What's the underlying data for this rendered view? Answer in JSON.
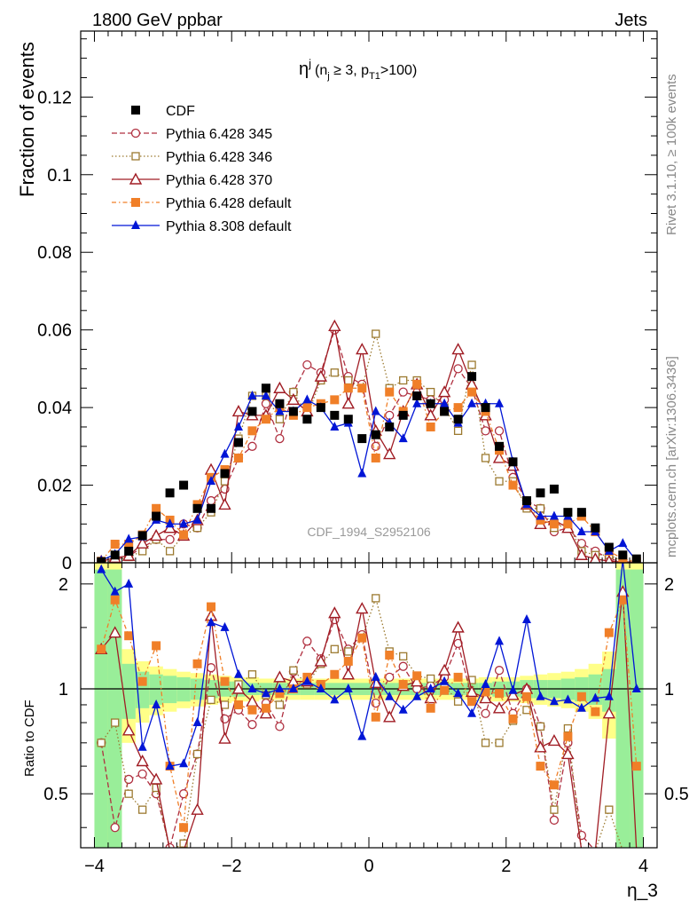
{
  "header": {
    "left_title": "1800 GeV ppbar",
    "right_title": "Jets"
  },
  "side_labels": {
    "rivet": "Rivet 3.1.10, ≥ 100k events",
    "mcplots": "mcplots.cern.ch [arXiv:1306.3436]"
  },
  "chart_data": {
    "type": "scatter",
    "title": "η^j (n_j ≥ 3, p_T1>100)",
    "title_parts": {
      "eta": "η",
      "sup": "j",
      "open": "(n",
      "nsub": "j",
      "geq": " ≥ 3, p",
      "ptsub": "T1",
      "close": ">100)"
    },
    "analysis_label": "CDF_1994_S2952106",
    "ylabel": "Fraction of events",
    "ratio_ylabel": "Ratio to CDF",
    "xlabel": "η_3",
    "xlim": [
      -4.2,
      4.2
    ],
    "ylim": [
      0,
      0.137
    ],
    "ratio_ylim": [
      0.35,
      2.3
    ],
    "x_ticks": [
      -4,
      -2,
      0,
      2,
      4
    ],
    "x_tick_labels": [
      "−4",
      "−2",
      "0",
      "2",
      "4"
    ],
    "y_ticks": [
      0,
      0.02,
      0.04,
      0.06,
      0.08,
      0.1,
      0.12
    ],
    "y_tick_labels": [
      "0",
      "0.02",
      "0.04",
      "0.06",
      "0.08",
      "0.1",
      "0.12"
    ],
    "ratio_ticks": [
      0.5,
      1,
      2
    ],
    "ratio_tick_labels": [
      "0.5",
      "1",
      "2"
    ],
    "legend_position": "top-left",
    "x": [
      -3.9,
      -3.7,
      -3.5,
      -3.3,
      -3.1,
      -2.9,
      -2.7,
      -2.5,
      -2.3,
      -2.1,
      -1.9,
      -1.7,
      -1.5,
      -1.3,
      -1.1,
      -0.9,
      -0.7,
      -0.5,
      -0.3,
      -0.1,
      0.1,
      0.3,
      0.5,
      0.7,
      0.9,
      1.1,
      1.3,
      1.5,
      1.7,
      1.9,
      2.1,
      2.3,
      2.5,
      2.7,
      2.9,
      3.1,
      3.3,
      3.5,
      3.7,
      3.9
    ],
    "series": [
      {
        "name": "CDF",
        "color": "#000000",
        "marker": "square-filled",
        "values": [
          0.0003,
          0.002,
          0.003,
          0.007,
          0.012,
          0.018,
          0.02,
          0.014,
          0.014,
          0.023,
          0.031,
          0.039,
          0.045,
          0.041,
          0.039,
          0.037,
          0.04,
          0.038,
          0.037,
          0.032,
          0.033,
          0.035,
          0.038,
          0.043,
          0.041,
          0.039,
          0.037,
          0.048,
          0.04,
          0.03,
          0.026,
          0.016,
          0.018,
          0.019,
          0.013,
          0.013,
          0.009,
          0.004,
          0.002,
          0.001
        ],
        "ratio_band_inner": [
          1.2,
          1.2,
          0.18,
          0.12,
          0.1,
          0.09,
          0.08,
          0.07,
          0.06,
          0.05,
          0.05,
          0.04,
          0.04,
          0.04,
          0.04,
          0.04,
          0.04,
          0.04,
          0.04,
          0.04,
          0.04,
          0.04,
          0.04,
          0.04,
          0.04,
          0.04,
          0.04,
          0.04,
          0.04,
          0.05,
          0.05,
          0.06,
          0.06,
          0.06,
          0.07,
          0.08,
          0.1,
          0.14,
          1.2,
          1.2
        ],
        "ratio_band_outer": [
          1.6,
          1.6,
          0.3,
          0.2,
          0.16,
          0.14,
          0.12,
          0.11,
          0.1,
          0.09,
          0.08,
          0.08,
          0.07,
          0.07,
          0.07,
          0.07,
          0.07,
          0.07,
          0.07,
          0.07,
          0.07,
          0.07,
          0.07,
          0.07,
          0.07,
          0.07,
          0.07,
          0.07,
          0.08,
          0.08,
          0.08,
          0.09,
          0.1,
          0.11,
          0.12,
          0.14,
          0.18,
          0.28,
          1.6,
          1.6
        ]
      },
      {
        "name": "Pythia 6.428 345",
        "color": "#b03040",
        "marker": "circle-open",
        "dash": "6,3",
        "values": [
          0.0002,
          0.0008,
          0.0017,
          0.004,
          0.006,
          0.006,
          0.01,
          0.009,
          0.016,
          0.019,
          0.027,
          0.03,
          0.041,
          0.032,
          0.044,
          0.051,
          0.049,
          0.06,
          0.048,
          0.046,
          0.03,
          0.038,
          0.044,
          0.043,
          0.042,
          0.042,
          0.05,
          0.045,
          0.034,
          0.034,
          0.022,
          0.016,
          0.014,
          0.008,
          0.009,
          0.005,
          0.003,
          0.001,
          0.0003,
          0.0001
        ],
        "ratio": [
          0.7,
          0.4,
          0.55,
          0.57,
          0.5,
          0.35,
          0.5,
          0.65,
          1.15,
          0.82,
          0.87,
          0.79,
          0.91,
          0.78,
          1.12,
          1.37,
          1.22,
          1.58,
          1.3,
          1.43,
          0.91,
          1.08,
          1.16,
          1.0,
          1.02,
          1.08,
          1.35,
          0.94,
          0.85,
          1.13,
          0.85,
          1.0,
          0.78,
          0.42,
          0.7,
          0.38,
          0.3,
          0.25,
          0.15,
          0.1
        ]
      },
      {
        "name": "Pythia 6.428 346",
        "color": "#9c7a30",
        "marker": "square-open",
        "dash": "1.5,2.5",
        "values": [
          0.0002,
          0.0006,
          0.0015,
          0.003,
          0.006,
          0.003,
          0.007,
          0.009,
          0.013,
          0.021,
          0.032,
          0.043,
          0.043,
          0.037,
          0.044,
          0.038,
          0.047,
          0.049,
          0.047,
          0.045,
          0.059,
          0.045,
          0.047,
          0.047,
          0.044,
          0.04,
          0.034,
          0.051,
          0.027,
          0.021,
          0.021,
          0.014,
          0.014,
          0.009,
          0.01,
          0.003,
          0.002,
          0.002,
          0.0004,
          0.0002
        ],
        "ratio": [
          0.7,
          0.8,
          0.5,
          0.45,
          0.52,
          0.2,
          0.36,
          0.65,
          0.93,
          0.9,
          1.03,
          1.1,
          0.96,
          0.9,
          1.13,
          1.03,
          1.18,
          1.3,
          1.28,
          1.4,
          1.82,
          1.28,
          1.24,
          1.09,
          1.07,
          1.02,
          0.92,
          1.06,
          0.7,
          0.7,
          0.81,
          0.87,
          0.78,
          0.45,
          0.77,
          0.25,
          0.22,
          0.45,
          0.2,
          0.1
        ]
      },
      {
        "name": "Pythia 6.428 370",
        "color": "#a01c24",
        "marker": "triangle-open",
        "dash": "",
        "values": [
          0.0004,
          0.0013,
          0.0018,
          0.005,
          0.007,
          0.009,
          0.007,
          0.011,
          0.024,
          0.015,
          0.039,
          0.038,
          0.038,
          0.045,
          0.042,
          0.039,
          0.048,
          0.061,
          0.041,
          0.055,
          0.034,
          0.028,
          0.039,
          0.046,
          0.038,
          0.044,
          0.055,
          0.046,
          0.038,
          0.027,
          0.025,
          0.015,
          0.01,
          0.011,
          0.009,
          0.002,
          0.001,
          0.0004,
          0.0002,
          0.0001
        ],
        "ratio": [
          1.3,
          1.45,
          0.76,
          0.62,
          0.55,
          0.3,
          0.25,
          0.45,
          1.62,
          0.72,
          1.0,
          0.92,
          0.85,
          1.08,
          1.05,
          1.05,
          1.2,
          1.65,
          1.1,
          1.7,
          1.04,
          0.83,
          1.02,
          1.05,
          0.94,
          1.13,
          1.5,
          0.98,
          0.94,
          0.88,
          0.96,
          1.0,
          0.68,
          0.71,
          0.65,
          0.2,
          0.12,
          0.85,
          1.9,
          0.2
        ]
      },
      {
        "name": "Pythia 6.428 default",
        "color": "#f07f28",
        "marker": "square-filled",
        "dash": "5,3,1.5,3",
        "values": [
          0.0004,
          0.0048,
          0.0048,
          0.0072,
          0.014,
          0.011,
          0.0072,
          0.015,
          0.022,
          0.024,
          0.027,
          0.034,
          0.037,
          0.04,
          0.038,
          0.04,
          0.041,
          0.042,
          0.045,
          0.045,
          0.027,
          0.044,
          0.039,
          0.046,
          0.035,
          0.039,
          0.04,
          0.044,
          0.039,
          0.029,
          0.02,
          0.015,
          0.011,
          0.01,
          0.01,
          0.012,
          0.008,
          0.003,
          0.001,
          0.0003
        ],
        "ratio": [
          1.3,
          1.8,
          1.42,
          1.05,
          1.33,
          0.6,
          0.4,
          1.18,
          1.72,
          1.05,
          0.9,
          0.87,
          0.88,
          0.97,
          1.0,
          1.08,
          1.03,
          1.1,
          1.2,
          1.4,
          0.83,
          1.25,
          1.03,
          1.09,
          0.88,
          0.99,
          1.08,
          0.92,
          0.98,
          0.97,
          0.82,
          0.95,
          0.6,
          0.53,
          0.73,
          0.95,
          0.86,
          1.45,
          1.8,
          0.6
        ]
      },
      {
        "name": "Pythia 8.308 default",
        "color": "#0015d6",
        "marker": "triangle-filled",
        "dash": "",
        "values": [
          0.0006,
          0.0022,
          0.0061,
          0.0067,
          0.011,
          0.01,
          0.01,
          0.011,
          0.021,
          0.028,
          0.035,
          0.043,
          0.043,
          0.039,
          0.039,
          0.042,
          0.04,
          0.035,
          0.036,
          0.023,
          0.039,
          0.036,
          0.032,
          0.041,
          0.041,
          0.041,
          0.036,
          0.041,
          0.041,
          0.041,
          0.026,
          0.015,
          0.012,
          0.012,
          0.012,
          0.008,
          0.008,
          0.003,
          0.005,
          0.0005
        ],
        "ratio": [
          2.2,
          1.9,
          2.0,
          0.68,
          0.9,
          0.6,
          0.61,
          0.8,
          1.55,
          1.5,
          1.1,
          1.0,
          0.97,
          1.0,
          1.0,
          1.05,
          1.0,
          0.93,
          1.0,
          0.73,
          1.08,
          0.95,
          0.87,
          0.95,
          1.0,
          1.05,
          0.97,
          0.85,
          1.03,
          1.37,
          0.99,
          1.58,
          0.95,
          0.92,
          0.93,
          0.88,
          0.94,
          0.95,
          2.4,
          1.0
        ]
      }
    ]
  }
}
